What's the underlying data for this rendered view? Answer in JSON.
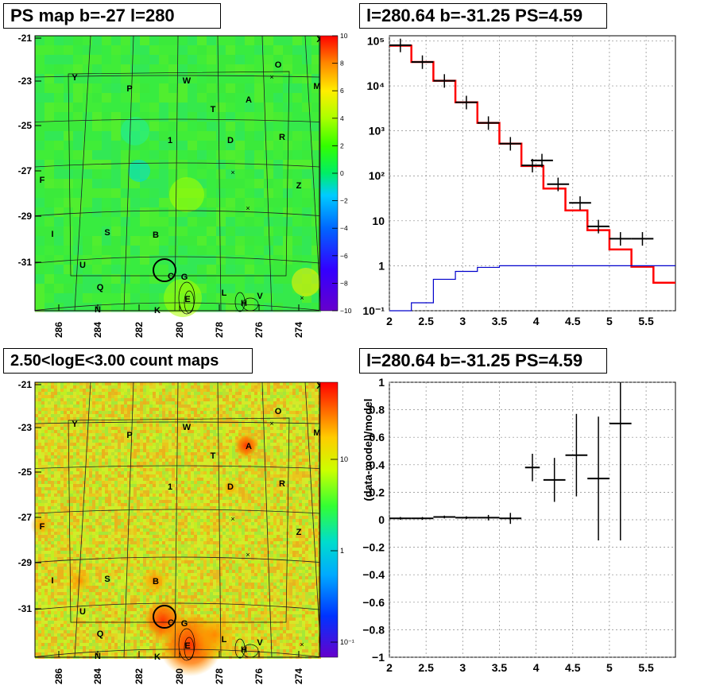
{
  "panels": {
    "ps_map": {
      "title": "PS map b=-27 l=280",
      "x_ticks": [
        "286",
        "284",
        "282",
        "280",
        "278",
        "276",
        "274"
      ],
      "y_ticks": [
        "-21",
        "-23",
        "-25",
        "-27",
        "-29",
        "-31"
      ],
      "colorbar_ticks": [
        "10",
        "8",
        "6",
        "4",
        "2",
        "0",
        "−2",
        "−4",
        "−6",
        "−8",
        "−10"
      ],
      "sources": [
        "X",
        "O",
        "Y",
        "W",
        "P",
        "M",
        "T",
        "A",
        "1",
        "D",
        "R",
        "F",
        "Z",
        "I",
        "S",
        "B",
        "U",
        "C",
        "G",
        "Q",
        "L",
        "H",
        "V",
        "N",
        "K",
        "E"
      ]
    },
    "spectrum": {
      "title": "l=280.64 b=-31.25 PS=4.59"
    },
    "count_map": {
      "title": "2.50<logE<3.00 count maps",
      "x_ticks": [
        "286",
        "284",
        "282",
        "280",
        "278",
        "276",
        "274"
      ],
      "y_ticks": [
        "-21",
        "-23",
        "-25",
        "-27",
        "-29",
        "-31"
      ],
      "colorbar_ticks": [
        "10",
        "1",
        "10⁻¹"
      ]
    },
    "residual": {
      "title": "l=280.64 b=-31.25 PS=4.59"
    }
  },
  "chart_data": [
    {
      "type": "heatmap",
      "title": "PS map b=-27 l=280",
      "xlabel": "",
      "ylabel": "",
      "x_range": [
        287.2,
        272.8
      ],
      "y_range": [
        -32.9,
        -20.8
      ],
      "z_range": [
        -10,
        10
      ],
      "description_values": "mostly 0 to 3 across field",
      "grid": true
    },
    {
      "type": "line",
      "title": "l=280.64 b=-31.25 PS=4.59",
      "y_scale": "log",
      "xlim": [
        2,
        5.9
      ],
      "ylim": [
        0.1,
        130000
      ],
      "x_ticks": [
        2,
        2.5,
        3,
        3.5,
        4,
        4.5,
        5,
        5.5
      ],
      "y_ticks": [
        "10⁻¹",
        "1",
        "10",
        "10²",
        "10³",
        "10⁴",
        "10⁵"
      ],
      "grid": true,
      "bin_edges": [
        2.0,
        2.3,
        2.6,
        2.9,
        3.2,
        3.5,
        3.8,
        4.1,
        4.4,
        4.7,
        5.0,
        5.3,
        5.6,
        5.9
      ],
      "series": [
        {
          "role": "model",
          "color": "#ff0000",
          "values": [
            78000,
            34000,
            13000,
            4300,
            1500,
            520,
            165,
            52,
            17,
            6.2,
            2.3,
            0.95,
            0.42
          ]
        },
        {
          "role": "data",
          "color": "#000000",
          "values": [
            80000,
            34000,
            13000,
            4300,
            1500,
            520,
            170,
            220,
            65,
            25,
            7.5,
            4,
            4
          ],
          "x_centers": [
            2.15,
            2.45,
            2.75,
            3.05,
            3.35,
            3.65,
            3.95,
            4.08,
            4.3,
            4.6,
            4.85,
            5.15,
            5.45
          ]
        },
        {
          "role": "background",
          "color": "#0000cc",
          "values": [
            0.09,
            0.15,
            0.5,
            0.75,
            0.92,
            1.0,
            1.0,
            1.0,
            1.0,
            1.0,
            1.0,
            1.0,
            1.0
          ]
        }
      ]
    },
    {
      "type": "heatmap",
      "title": "2.50<logE<3.00 count maps",
      "x_range": [
        287.2,
        272.8
      ],
      "y_range": [
        -32.9,
        -20.8
      ],
      "z_scale": "log",
      "z_ticks": [
        "10",
        "1",
        "10⁻¹"
      ],
      "grid": true
    },
    {
      "type": "scatter",
      "title": "l=280.64 b=-31.25 PS=4.59",
      "ylabel": "(data-model)/model",
      "xlim": [
        2,
        5.9
      ],
      "ylim": [
        -1,
        1
      ],
      "x_ticks": [
        2,
        2.5,
        3,
        3.5,
        4,
        4.5,
        5,
        5.5
      ],
      "y_ticks": [
        -1,
        -0.8,
        -0.6,
        -0.4,
        -0.2,
        0,
        0.2,
        0.4,
        0.6,
        0.8,
        1
      ],
      "grid": true,
      "x": [
        2.15,
        2.45,
        2.75,
        3.05,
        3.35,
        3.65,
        3.95,
        4.25,
        4.55,
        4.85,
        5.15
      ],
      "x_err": [
        0.15,
        0.15,
        0.15,
        0.15,
        0.15,
        0.15,
        0.1,
        0.15,
        0.15,
        0.15,
        0.15
      ],
      "y": [
        0.01,
        0.01,
        0.02,
        0.015,
        0.015,
        0.01,
        0.38,
        0.29,
        0.47,
        0.3,
        0.7
      ],
      "y_err": [
        0.01,
        0.01,
        0.01,
        0.01,
        0.02,
        0.04,
        0.1,
        0.16,
        0.3,
        0.45,
        0.85
      ]
    }
  ]
}
